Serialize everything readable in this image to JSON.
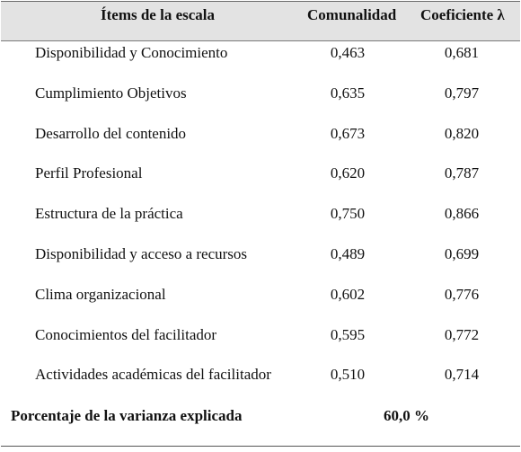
{
  "table": {
    "headers": {
      "item": "Ítems de la escala",
      "communality": "Comunalidad",
      "coefficient": "Coeficiente λ"
    },
    "rows": [
      {
        "item": "Disponibilidad y Conocimiento",
        "communality": "0,463",
        "coefficient": "0,681"
      },
      {
        "item": "Cumplimiento Objetivos",
        "communality": "0,635",
        "coefficient": "0,797"
      },
      {
        "item": "Desarrollo del contenido",
        "communality": "0,673",
        "coefficient": "0,820"
      },
      {
        "item": "Perfil Profesional",
        "communality": "0,620",
        "coefficient": "0,787"
      },
      {
        "item": "Estructura de la práctica",
        "communality": "0,750",
        "coefficient": "0,866"
      },
      {
        "item": "Disponibilidad y acceso a recursos",
        "communality": "0,489",
        "coefficient": "0,699"
      },
      {
        "item": "Clima organizacional",
        "communality": "0,602",
        "coefficient": "0,776"
      },
      {
        "item": "Conocimientos del facilitador",
        "communality": "0,595",
        "coefficient": "0,772"
      },
      {
        "item": "Actividades académicas del facilitador",
        "communality": "0,510",
        "coefficient": "0,714"
      }
    ],
    "footer": {
      "label": "Porcentaje de la varianza explicada",
      "value": "60,0 %"
    }
  }
}
